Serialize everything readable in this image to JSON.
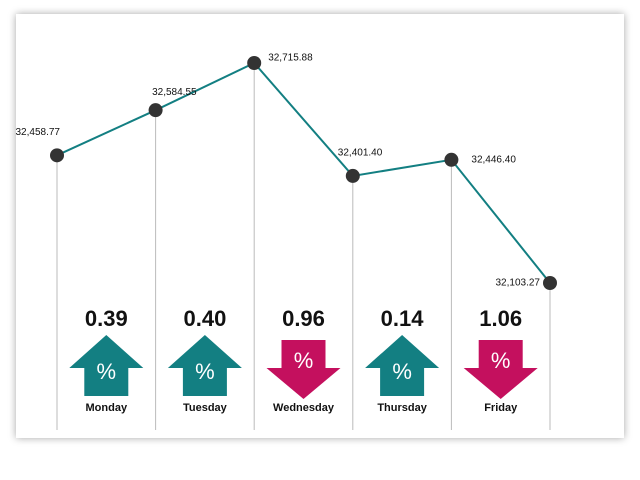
{
  "chart_data": {
    "type": "line",
    "values": [
      32458.77,
      32584.55,
      32715.88,
      32401.4,
      32446.4,
      32103.27
    ],
    "value_labels": [
      "32,458.77",
      "32,584.55",
      "32,715.88",
      "32,401.40",
      "32,446.40",
      "32,103.27"
    ],
    "color": "#137f82",
    "marker_color": "#333333",
    "changes": {
      "categories": [
        "Monday",
        "Tuesday",
        "Wednesday",
        "Thursday",
        "Friday"
      ],
      "values": [
        0.39,
        0.4,
        0.96,
        0.14,
        1.06
      ],
      "value_labels": [
        "0.39",
        "0.40",
        "0.96",
        "0.14",
        "1.06"
      ],
      "directions": [
        "up",
        "up",
        "down",
        "up",
        "down"
      ],
      "symbol": "%",
      "up_color": "#137f82",
      "down_color": "#c4105e"
    }
  }
}
